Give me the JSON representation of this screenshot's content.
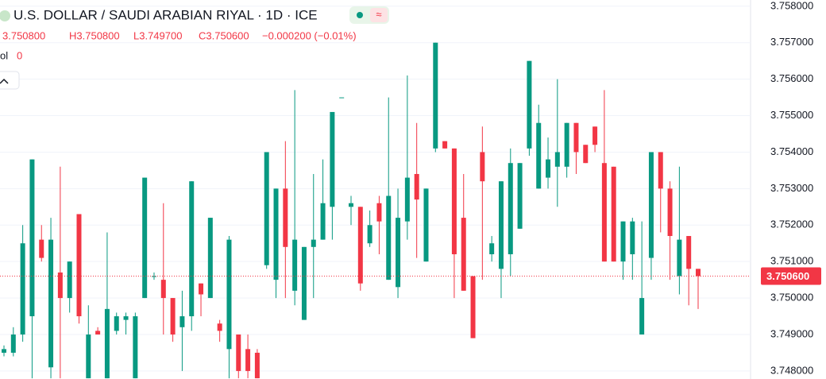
{
  "chart_data": {
    "type": "candlestick",
    "title": "U.S. DOLLAR / SAUDI ARABIAN RIYAL · 1D · ICE",
    "ohlc_text": [
      "3.750800",
      "H3.750800",
      "L3.749700",
      "C3.750600",
      "−0.000200 (−0.01%)"
    ],
    "volume_label": "ol",
    "volume_value": "0",
    "up_color": "#089981",
    "down_color": "#f23645",
    "ylim": [
      3.74778,
      3.75817
    ],
    "yticks": [
      {
        "value": 3.748,
        "label": "3.748000"
      },
      {
        "value": 3.749,
        "label": "3.749000"
      },
      {
        "value": 3.75,
        "label": "3.750000"
      },
      {
        "value": 3.751,
        "label": "3.751000"
      },
      {
        "value": 3.752,
        "label": "3.752000"
      },
      {
        "value": 3.753,
        "label": "3.753000"
      },
      {
        "value": 3.754,
        "label": "3.754000"
      },
      {
        "value": 3.755,
        "label": "3.755000"
      },
      {
        "value": 3.756,
        "label": "3.756000"
      },
      {
        "value": 3.757,
        "label": "3.757000"
      },
      {
        "value": 3.758,
        "label": "3.758000"
      }
    ],
    "grid": true,
    "last_price": {
      "value": 3.7506,
      "label": "3.750600"
    },
    "open": [
      3.7485,
      3.7485,
      3.749,
      3.7495,
      3.7516,
      3.7481,
      3.7507,
      3.75,
      3.7523,
      3.7478,
      3.7491,
      3.7478,
      3.7491,
      3.7494,
      3.7478,
      3.75,
      3.7506,
      3.7505,
      3.75,
      3.7492,
      3.7495,
      3.7504,
      3.75,
      3.7493,
      3.7486,
      3.749,
      3.7486,
      3.7485,
      3.7509,
      3.7505,
      3.753,
      3.7502,
      3.7494,
      3.7514,
      3.7516,
      3.7525,
      3.7555,
      3.7525,
      3.7525,
      3.7515,
      3.7526,
      3.7505,
      3.7503,
      3.7521,
      3.7534,
      3.751,
      3.7541,
      3.7543,
      3.7541,
      3.7522,
      3.7506,
      3.754,
      3.7512,
      3.7508,
      3.7512,
      3.7519,
      3.7541,
      3.753,
      3.7533,
      3.7536,
      3.7536,
      3.7548,
      3.7542,
      3.7547,
      3.7537,
      3.7536,
      3.751,
      3.7512,
      3.749,
      3.7511,
      3.754,
      3.753,
      3.7506,
      3.7517,
      3.7508
    ],
    "high": [
      3.7487,
      3.7492,
      3.752,
      3.7538,
      3.752,
      3.7522,
      3.7536,
      3.751,
      3.7523,
      3.7498,
      3.7492,
      3.7518,
      3.7496,
      3.7496,
      3.7496,
      3.7533,
      3.7507,
      3.7526,
      3.75,
      3.7502,
      3.7532,
      3.7504,
      3.7522,
      3.7494,
      3.7517,
      3.749,
      3.749,
      3.7486,
      3.754,
      3.753,
      3.7543,
      3.7557,
      3.7514,
      3.7534,
      3.7538,
      3.7551,
      3.7555,
      3.7528,
      3.7525,
      3.7524,
      3.7528,
      3.7555,
      3.753,
      3.7561,
      3.7548,
      3.753,
      3.757,
      3.7543,
      3.7541,
      3.7534,
      3.7506,
      3.7547,
      3.7517,
      3.7532,
      3.7541,
      3.7537,
      3.7565,
      3.7553,
      3.7544,
      3.756,
      3.7548,
      3.7548,
      3.7542,
      3.7547,
      3.7557,
      3.7536,
      3.7521,
      3.7522,
      3.7521,
      3.754,
      3.754,
      3.7532,
      3.7536,
      3.7517,
      3.7508
    ],
    "low": [
      3.7484,
      3.7484,
      3.7488,
      3.7478,
      3.751,
      3.7478,
      3.7478,
      3.7496,
      3.7493,
      3.7478,
      3.749,
      3.7478,
      3.749,
      3.749,
      3.7478,
      3.75,
      3.7505,
      3.749,
      3.7488,
      3.748,
      3.7491,
      3.7495,
      3.75,
      3.7488,
      3.7478,
      3.7478,
      3.7478,
      3.7478,
      3.7508,
      3.75,
      3.75,
      3.7498,
      3.7494,
      3.75,
      3.7516,
      3.7516,
      3.7555,
      3.752,
      3.7502,
      3.7514,
      3.7512,
      3.7505,
      3.75,
      3.7516,
      3.7511,
      3.751,
      3.754,
      3.7541,
      3.75,
      3.7502,
      3.7489,
      3.7505,
      3.751,
      3.75,
      3.7506,
      3.7519,
      3.7539,
      3.753,
      3.753,
      3.7525,
      3.7533,
      3.7534,
      3.7537,
      3.754,
      3.751,
      3.751,
      3.7505,
      3.7505,
      3.749,
      3.7505,
      3.7518,
      3.7505,
      3.7501,
      3.7498,
      3.7497
    ],
    "close": [
      3.7486,
      3.749,
      3.7515,
      3.7538,
      3.7511,
      3.7516,
      3.75,
      3.751,
      3.7495,
      3.749,
      3.749,
      3.7497,
      3.7495,
      3.7495,
      3.7495,
      3.7533,
      3.7506,
      3.75,
      3.749,
      3.7495,
      3.7532,
      3.7501,
      3.7522,
      3.7491,
      3.7516,
      3.748,
      3.748,
      3.7478,
      3.754,
      3.753,
      3.7514,
      3.7516,
      3.7514,
      3.7516,
      3.7526,
      3.7551,
      3.7555,
      3.7526,
      3.7504,
      3.752,
      3.7521,
      3.7528,
      3.7522,
      3.7533,
      3.7527,
      3.753,
      3.757,
      3.7541,
      3.7512,
      3.7502,
      3.7489,
      3.7532,
      3.7515,
      3.7532,
      3.7537,
      3.7537,
      3.7565,
      3.7548,
      3.7538,
      3.754,
      3.7548,
      3.754,
      3.7537,
      3.7542,
      3.751,
      3.751,
      3.7521,
      3.7521,
      3.75,
      3.754,
      3.753,
      3.7517,
      3.7516,
      3.7508,
      3.7506
    ]
  }
}
